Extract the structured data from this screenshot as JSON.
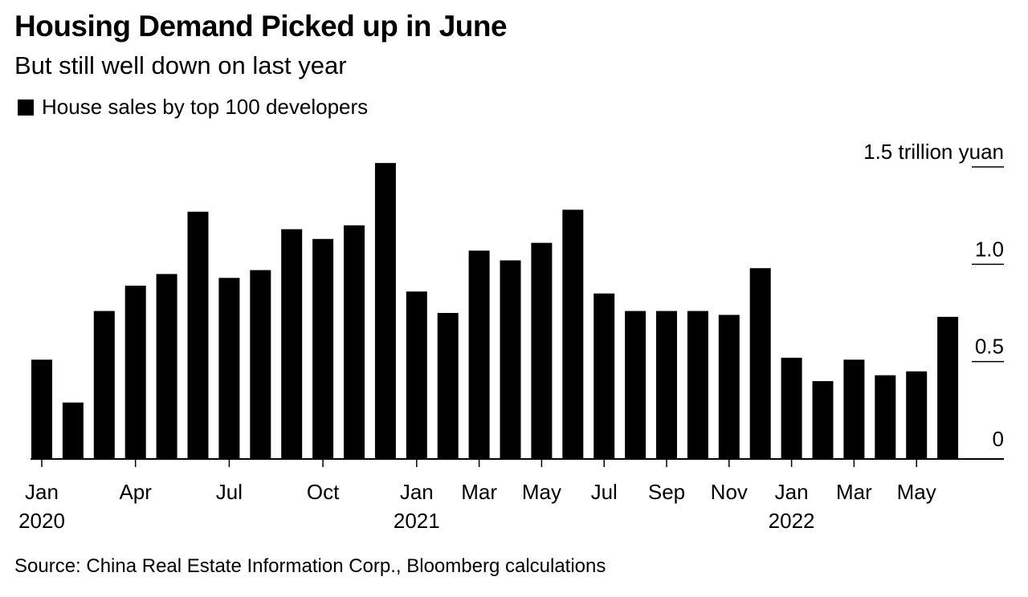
{
  "title": "Housing Demand Picked up in June",
  "subtitle": "But still well down on last year",
  "legend": {
    "label": "House sales by top 100 developers",
    "color": "#000000"
  },
  "source": "Source: China Real Estate Information Corp., Bloomberg calculations",
  "chart_data": {
    "type": "bar",
    "title": "Housing Demand Picked up in June",
    "subtitle": "But still well down on last year",
    "series": [
      {
        "name": "House sales by top 100 developers",
        "color": "#000000",
        "values": [
          0.51,
          0.29,
          0.76,
          0.89,
          0.95,
          1.27,
          0.93,
          0.97,
          1.18,
          1.13,
          1.2,
          1.52,
          0.86,
          0.75,
          1.07,
          1.02,
          1.11,
          1.28,
          0.85,
          0.76,
          0.76,
          0.76,
          0.74,
          0.98,
          0.52,
          0.4,
          0.51,
          0.43,
          0.45,
          0.73
        ]
      }
    ],
    "categories": [
      "Jan 2020",
      "Feb 2020",
      "Mar 2020",
      "Apr 2020",
      "May 2020",
      "Jun 2020",
      "Jul 2020",
      "Aug 2020",
      "Sep 2020",
      "Oct 2020",
      "Nov 2020",
      "Dec 2020",
      "Jan 2021",
      "Feb 2021",
      "Mar 2021",
      "Apr 2021",
      "May 2021",
      "Jun 2021",
      "Jul 2021",
      "Aug 2021",
      "Sep 2021",
      "Oct 2021",
      "Nov 2021",
      "Dec 2021",
      "Jan 2022",
      "Feb 2022",
      "Mar 2022",
      "Apr 2022",
      "May 2022",
      "Jun 2022"
    ],
    "x_ticks": [
      {
        "index": 0,
        "label": "Jan",
        "year": "2020"
      },
      {
        "index": 3,
        "label": "Apr",
        "year": ""
      },
      {
        "index": 6,
        "label": "Jul",
        "year": ""
      },
      {
        "index": 9,
        "label": "Oct",
        "year": ""
      },
      {
        "index": 12,
        "label": "Jan",
        "year": "2021"
      },
      {
        "index": 14,
        "label": "Mar",
        "year": ""
      },
      {
        "index": 16,
        "label": "May",
        "year": ""
      },
      {
        "index": 18,
        "label": "Jul",
        "year": ""
      },
      {
        "index": 20,
        "label": "Sep",
        "year": ""
      },
      {
        "index": 22,
        "label": "Nov",
        "year": ""
      },
      {
        "index": 24,
        "label": "Jan",
        "year": "2022"
      },
      {
        "index": 26,
        "label": "Mar",
        "year": ""
      },
      {
        "index": 28,
        "label": "May",
        "year": ""
      }
    ],
    "y_ticks": [
      {
        "value": 0,
        "label": "0"
      },
      {
        "value": 0.5,
        "label": "0.5"
      },
      {
        "value": 1.0,
        "label": "1.0"
      },
      {
        "value": 1.5,
        "label": "1.5 trillion yuan"
      }
    ],
    "ylim": [
      0,
      1.5
    ],
    "ylabel": "trillion yuan",
    "xlabel": "",
    "grid": false,
    "y_axis_position": "right",
    "legend_position": "top-left"
  }
}
